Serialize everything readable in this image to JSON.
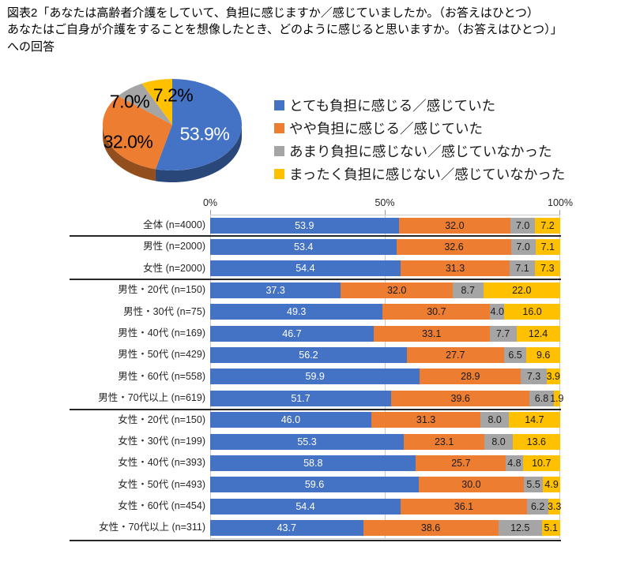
{
  "title": "図表2「あなたは高齢者介護をしていて、負担に感じますか／感じていましたか。（お答えはひとつ）\nあなたはご自身が介護をすることを想像したとき、どのように感じると思いますか。（お答えはひとつ）」\nへの回答",
  "colors": {
    "blue": "#4472C4",
    "orange": "#ED7D31",
    "gray": "#A5A5A5",
    "yellow": "#FFC000"
  },
  "legend": {
    "items": [
      {
        "label": "とても負担に感じる／感じていた",
        "color": "blue"
      },
      {
        "label": "やや負担に感じる／感じていた",
        "color": "orange"
      },
      {
        "label": "あまり負担に感じない／感じていなかった",
        "color": "gray"
      },
      {
        "label": "まったく負担に感じない／感じていなかった",
        "color": "yellow"
      }
    ]
  },
  "pie": {
    "display_labels": [
      "53.9%",
      "32.0%",
      "7.0%",
      "7.2%"
    ]
  },
  "axis": {
    "ticks": [
      "0%",
      "50%",
      "100%"
    ]
  },
  "chart_data": [
    {
      "type": "pie",
      "labels": [
        "とても負担に感じる／感じていた",
        "やや負担に感じる／感じていた",
        "あまり負担に感じない／感じていなかった",
        "まったく負担に感じない／感じていなかった"
      ],
      "values": [
        53.9,
        32.0,
        7.0,
        7.2
      ],
      "unit": "%",
      "style": "3d",
      "start_angle_deg": 0,
      "direction": "clockwise",
      "legend_position": "right"
    },
    {
      "type": "bar",
      "orientation": "horizontal",
      "stacked": true,
      "xlim": [
        0,
        100
      ],
      "x_ticks": [
        "0%",
        "50%",
        "100%"
      ],
      "grid": "vertical-at-0-50-100",
      "categories": [
        "全体 (n=4000)",
        "男性 (n=2000)",
        "女性 (n=2000)",
        "男性・20代 (n=150)",
        "男性・30代 (n=75)",
        "男性・40代 (n=169)",
        "男性・50代 (n=429)",
        "男性・60代 (n=558)",
        "男性・70代以上 (n=619)",
        "女性・20代 (n=150)",
        "女性・30代 (n=199)",
        "女性・40代 (n=393)",
        "女性・50代 (n=493)",
        "女性・60代 (n=454)",
        "女性・70代以上 (n=311)"
      ],
      "series": [
        {
          "name": "とても負担に感じる／感じていた",
          "color": "blue",
          "values": [
            53.9,
            53.4,
            54.4,
            37.3,
            49.3,
            46.7,
            56.2,
            59.9,
            51.7,
            46.0,
            55.3,
            58.8,
            59.6,
            54.4,
            43.7
          ]
        },
        {
          "name": "やや負担に感じる／感じていた",
          "color": "orange",
          "values": [
            32.0,
            32.6,
            31.3,
            32.0,
            30.7,
            33.1,
            27.7,
            28.9,
            39.6,
            31.3,
            23.1,
            25.7,
            30.0,
            36.1,
            38.6
          ]
        },
        {
          "name": "あまり負担に感じない／感じていなかった",
          "color": "gray",
          "values": [
            7.0,
            7.0,
            7.1,
            8.7,
            4.0,
            7.7,
            6.5,
            7.3,
            6.8,
            8.0,
            8.0,
            4.8,
            5.5,
            6.2,
            12.5
          ]
        },
        {
          "name": "まったく負担に感じない／感じていなかった",
          "color": "yellow",
          "values": [
            7.2,
            7.1,
            7.3,
            22.0,
            16.0,
            12.4,
            9.6,
            3.9,
            1.9,
            14.7,
            13.6,
            10.7,
            4.9,
            3.3,
            5.1
          ]
        }
      ],
      "group_separators_after_rows": [
        1,
        3,
        9,
        15
      ]
    }
  ]
}
